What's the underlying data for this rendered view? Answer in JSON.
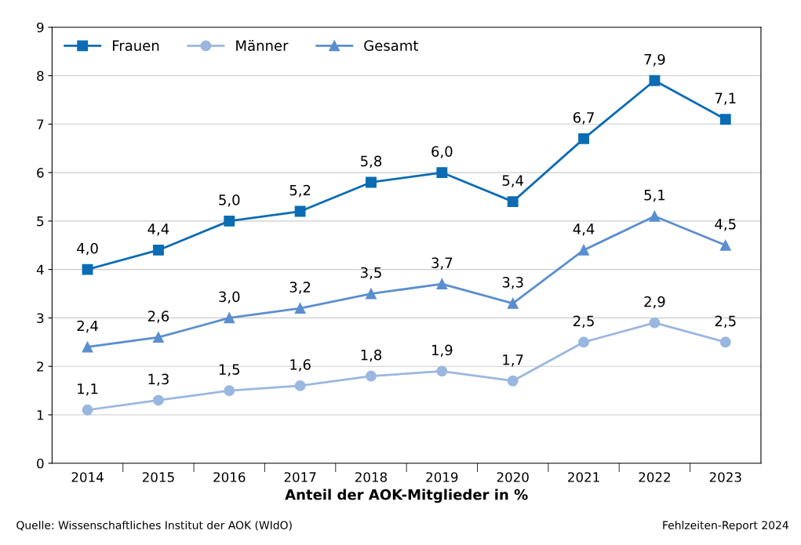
{
  "chart_data": {
    "type": "line",
    "xlabel": "Anteil der AOK-Mitglieder in %",
    "categories": [
      "2014",
      "2015",
      "2016",
      "2017",
      "2018",
      "2019",
      "2020",
      "2021",
      "2022",
      "2023"
    ],
    "series": [
      {
        "name": "Frauen",
        "color": "#0b6cb3",
        "marker": "square",
        "values": [
          4.0,
          4.4,
          5.0,
          5.2,
          5.8,
          6.0,
          5.4,
          6.7,
          7.9,
          7.1
        ],
        "value_labels": [
          "4,0",
          "4,4",
          "5,0",
          "5,2",
          "5,8",
          "6,0",
          "5,4",
          "6,7",
          "7,9",
          "7,1"
        ]
      },
      {
        "name": "Männer",
        "color": "#9ab7e0",
        "marker": "circle",
        "values": [
          1.1,
          1.3,
          1.5,
          1.6,
          1.8,
          1.9,
          1.7,
          2.5,
          2.9,
          2.5
        ],
        "value_labels": [
          "1,1",
          "1,3",
          "1,5",
          "1,6",
          "1,8",
          "1,9",
          "1,7",
          "2,5",
          "2,9",
          "2,5"
        ]
      },
      {
        "name": "Gesamt",
        "color": "#5b8ecf",
        "marker": "triangle",
        "values": [
          2.4,
          2.6,
          3.0,
          3.2,
          3.5,
          3.7,
          3.3,
          4.4,
          5.1,
          4.5
        ],
        "value_labels": [
          "2,4",
          "2,6",
          "3,0",
          "3,2",
          "3,5",
          "3,7",
          "3,3",
          "4,4",
          "5,1",
          "4,5"
        ]
      }
    ],
    "ylim": [
      0,
      9
    ],
    "yticks": [
      0,
      1,
      2,
      3,
      4,
      5,
      6,
      7,
      8,
      9
    ],
    "grid": "y",
    "legend": "top left",
    "annotations": [
      "Quelle: Wissenschaftliches Institut der AOK (WIdO)",
      "Fehlzeiten-Report 2024"
    ]
  }
}
